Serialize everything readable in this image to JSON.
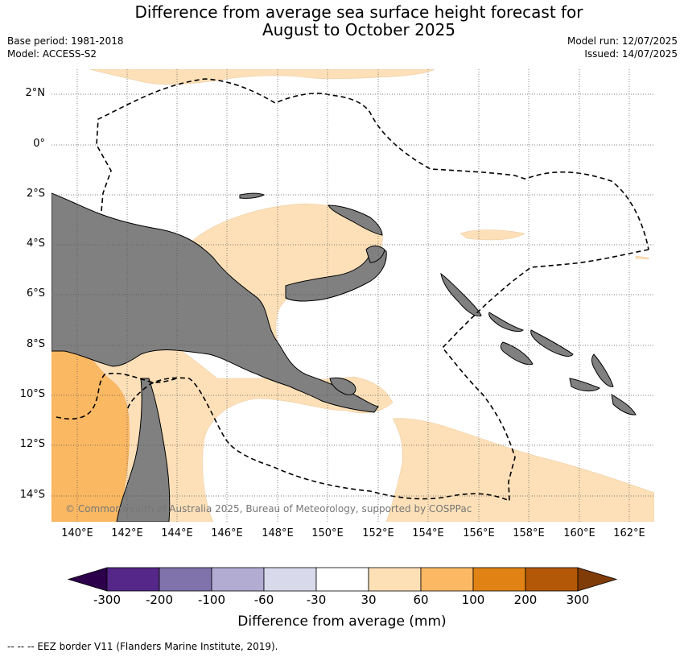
{
  "title": {
    "line1": "Difference from average sea surface height forecast for",
    "line2": "August to October 2025"
  },
  "meta": {
    "base_period": "Base period: 1981-2018",
    "model": "Model: ACCESS-S2",
    "model_run": "Model run: 12/07/2025",
    "issued": "Issued: 14/07/2025"
  },
  "map": {
    "lat_labels": [
      "2°N",
      "0°",
      "2°S",
      "4°S",
      "6°S",
      "8°S",
      "10°S",
      "12°S",
      "14°S"
    ],
    "lon_labels": [
      "140°E",
      "142°E",
      "144°E",
      "146°E",
      "148°E",
      "150°E",
      "152°E",
      "154°E",
      "156°E",
      "158°E",
      "160°E",
      "162°E"
    ],
    "copyright": "© Commonwealth of Australia 2025, Bureau of Meteorology, supported by COSPPac",
    "colors": {
      "land": "#808080",
      "light_orange": "#fde0b8",
      "orange": "#fbb862",
      "ocean": "#ffffff",
      "eez": "#000000"
    }
  },
  "colorbar": {
    "title": "Difference from average (mm)",
    "labels": [
      "-300",
      "-200",
      "-100",
      "-60",
      "-30",
      "30",
      "60",
      "100",
      "200",
      "300"
    ],
    "colors": [
      "#2d004b",
      "#542788",
      "#8073ac",
      "#b2abd2",
      "#d8daeb",
      "#ffffff",
      "#fee0b6",
      "#fdb863",
      "#e08214",
      "#b35806",
      "#7f3b08"
    ]
  },
  "footnote": "--  --  -- EEZ border V11 (Flanders Marine Institute, 2019)."
}
